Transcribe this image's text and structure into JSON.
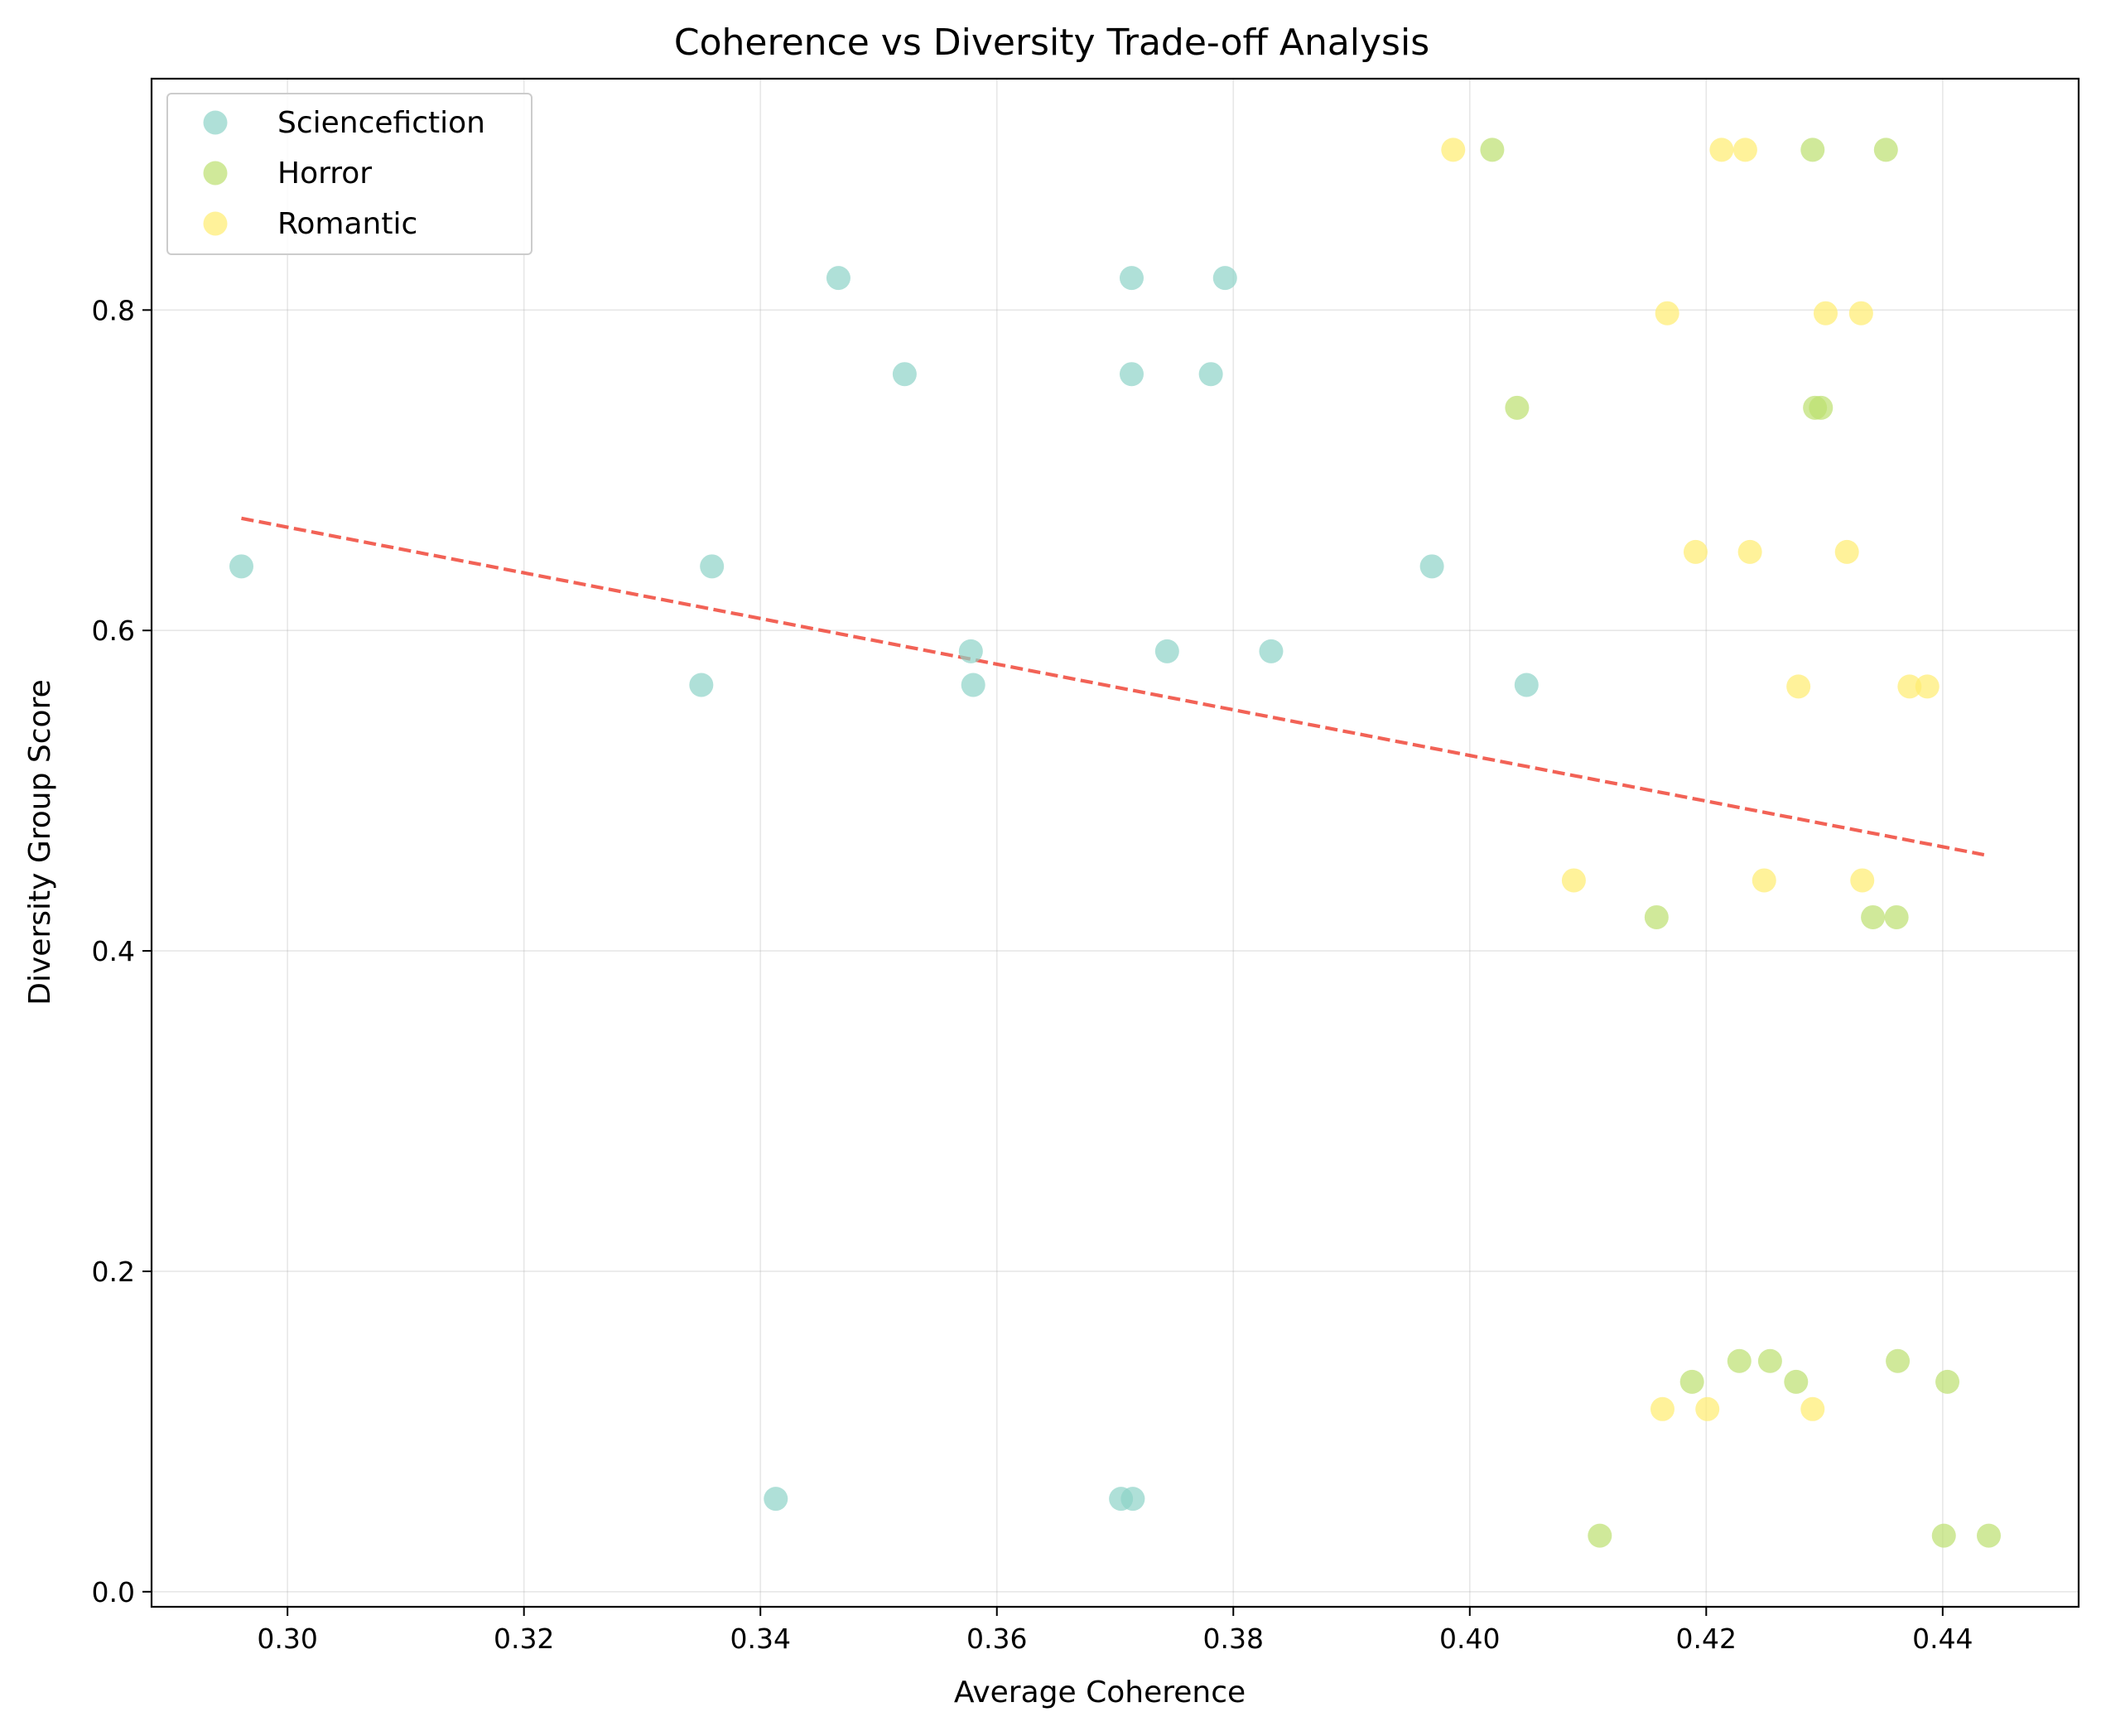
{
  "chart_data": {
    "type": "scatter",
    "title": "Coherence vs Diversity Trade-off Analysis",
    "xlabel": "Average Coherence",
    "ylabel": "Diversity Group Score",
    "xlim": [
      0.2885,
      0.4515
    ],
    "ylim": [
      -0.0094,
      0.9444
    ],
    "x_ticks": [
      {
        "value": 0.3,
        "label": "0.30"
      },
      {
        "value": 0.32,
        "label": "0.32"
      },
      {
        "value": 0.34,
        "label": "0.34"
      },
      {
        "value": 0.36,
        "label": "0.36"
      },
      {
        "value": 0.38,
        "label": "0.38"
      },
      {
        "value": 0.4,
        "label": "0.40"
      },
      {
        "value": 0.42,
        "label": "0.42"
      },
      {
        "value": 0.44,
        "label": "0.44"
      }
    ],
    "y_ticks": [
      {
        "value": 0.0,
        "label": "0.0"
      },
      {
        "value": 0.2,
        "label": "0.2"
      },
      {
        "value": 0.4,
        "label": "0.4"
      },
      {
        "value": 0.6,
        "label": "0.6"
      },
      {
        "value": 0.8,
        "label": "0.8"
      }
    ],
    "grid": true,
    "legend_position": "top-left",
    "series": [
      {
        "name": "Sciencefiction",
        "color": "#8dd3c7",
        "points": [
          [
            0.2961,
            0.64
          ],
          [
            0.3359,
            0.64
          ],
          [
            0.335,
            0.566
          ],
          [
            0.3578,
            0.587
          ],
          [
            0.358,
            0.566
          ],
          [
            0.3466,
            0.82
          ],
          [
            0.3522,
            0.76
          ],
          [
            0.3714,
            0.82
          ],
          [
            0.3714,
            0.76
          ],
          [
            0.3793,
            0.82
          ],
          [
            0.3781,
            0.76
          ],
          [
            0.3744,
            0.587
          ],
          [
            0.3832,
            0.587
          ],
          [
            0.3968,
            0.64
          ],
          [
            0.4048,
            0.566
          ],
          [
            0.3413,
            0.058
          ],
          [
            0.3705,
            0.058
          ],
          [
            0.3715,
            0.058
          ]
        ]
      },
      {
        "name": "Horror",
        "color": "#bcdf6f",
        "points": [
          [
            0.4019,
            0.9
          ],
          [
            0.429,
            0.9
          ],
          [
            0.4352,
            0.9
          ],
          [
            0.404,
            0.739
          ],
          [
            0.4292,
            0.739
          ],
          [
            0.4297,
            0.739
          ],
          [
            0.4158,
            0.421
          ],
          [
            0.4341,
            0.421
          ],
          [
            0.4361,
            0.421
          ],
          [
            0.4188,
            0.131
          ],
          [
            0.4228,
            0.144
          ],
          [
            0.4254,
            0.144
          ],
          [
            0.4276,
            0.131
          ],
          [
            0.4362,
            0.144
          ],
          [
            0.4404,
            0.131
          ],
          [
            0.411,
            0.035
          ],
          [
            0.4401,
            0.035
          ],
          [
            0.4439,
            0.035
          ]
        ]
      },
      {
        "name": "Romantic",
        "color": "#ffed6f",
        "points": [
          [
            0.3986,
            0.9
          ],
          [
            0.4213,
            0.9
          ],
          [
            0.4233,
            0.9
          ],
          [
            0.4167,
            0.798
          ],
          [
            0.4301,
            0.798
          ],
          [
            0.4331,
            0.798
          ],
          [
            0.4191,
            0.649
          ],
          [
            0.4237,
            0.649
          ],
          [
            0.4319,
            0.649
          ],
          [
            0.4278,
            0.565
          ],
          [
            0.4372,
            0.565
          ],
          [
            0.4387,
            0.565
          ],
          [
            0.4088,
            0.444
          ],
          [
            0.4249,
            0.444
          ],
          [
            0.4332,
            0.444
          ],
          [
            0.4163,
            0.114
          ],
          [
            0.4201,
            0.114
          ],
          [
            0.429,
            0.114
          ]
        ]
      }
    ],
    "trendline": {
      "style": "dashed",
      "color": "#ef3b2c",
      "x": [
        0.2961,
        0.4435
      ],
      "y": [
        0.67,
        0.46
      ]
    }
  }
}
